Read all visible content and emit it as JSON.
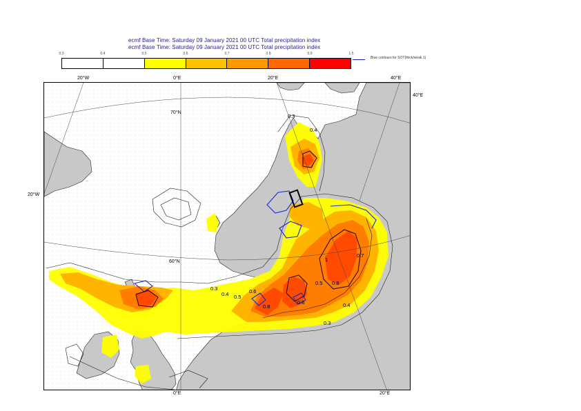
{
  "title": {
    "line1": "ecmf  Base Time: Saturday 09 January 2021 00 UTC Total precipitation index",
    "line2": "ecmf  Base Time: Saturday 09 January 2021 00 UTC Total precipitation index"
  },
  "colorbar": {
    "ticks": [
      "0.3",
      "0.4",
      "0.5",
      "0.6",
      "0.7",
      "0.8",
      "0.9",
      "1.5"
    ],
    "colors": [
      "#ffffff",
      "#ffffff",
      "#ffff00",
      "#ffc000",
      "#ff9900",
      "#ff6600",
      "#ff0000"
    ],
    "legend_text": "Blue contours for SOT(thick/weak 1)"
  },
  "map": {
    "lon_labels": {
      "top_20w": "20°W",
      "top_0": "0°E",
      "top_20e": "20°E",
      "top_40e": "40°E",
      "right_40e": "40°E",
      "left_20w": "20°W",
      "bottom_0": "0°E",
      "bottom_20e": "20°E"
    },
    "lat_labels": {
      "lat70": "70°N",
      "lat60": "60°N"
    },
    "contour_labels": [
      "0.3",
      "0.4",
      "0.5",
      "0.6",
      "0.8",
      "0.8",
      "0.8",
      "0.5",
      "0.4",
      "0.3",
      "0.7",
      "1",
      "0.3",
      "0.4"
    ]
  }
}
